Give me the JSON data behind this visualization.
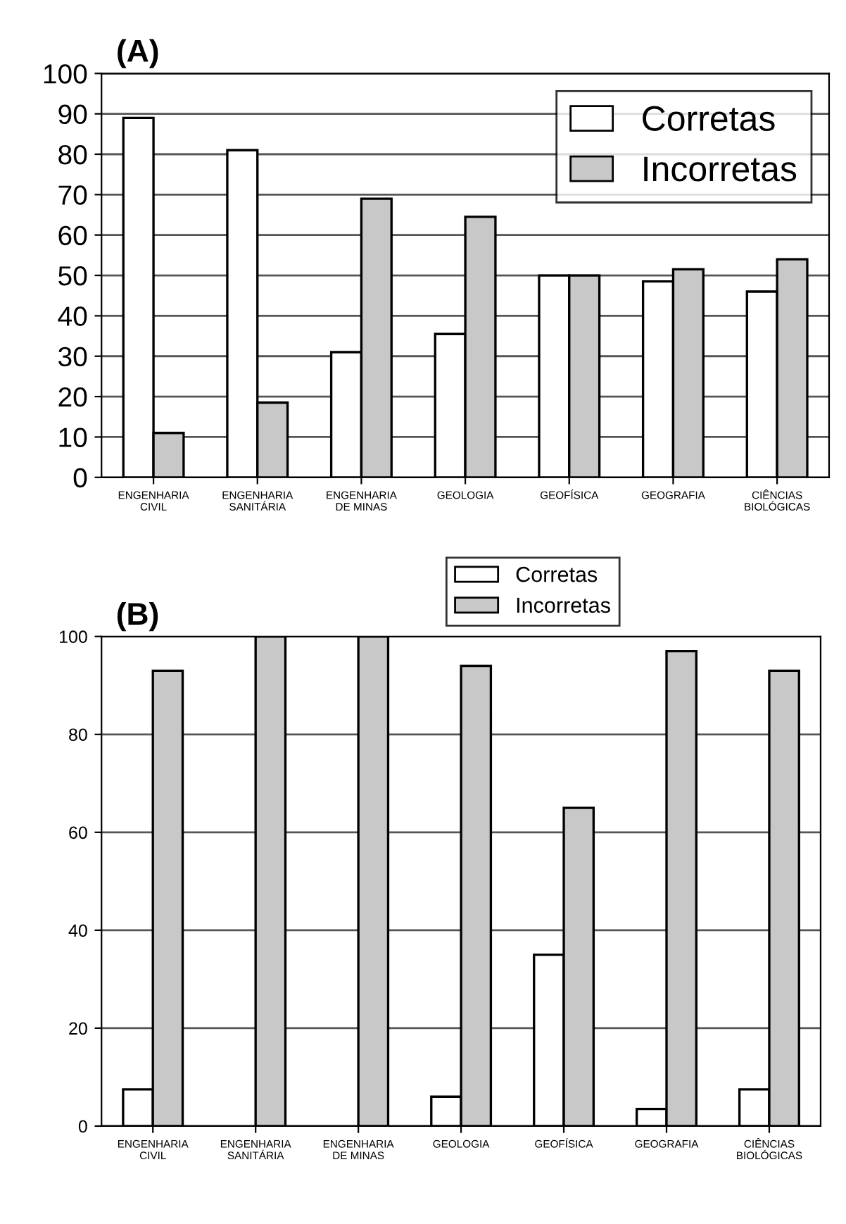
{
  "chart_data": [
    {
      "type": "bar",
      "title": "(A)",
      "categories": [
        "ENGENHARIA\nCIVIL",
        "ENGENHARIA\nSANITÁRIA",
        "ENGENHARIA\nDE MINAS",
        "GEOLOGIA",
        "GEOFÍSICA",
        "GEOGRAFIA",
        "CIÊNCIAS\nBIOLÓGICAS"
      ],
      "series": [
        {
          "name": "Corretas",
          "color": "#ffffff",
          "values": [
            89,
            81,
            31,
            35.5,
            50,
            48.5,
            46
          ]
        },
        {
          "name": "Incorretas",
          "color": "#c8c8c8",
          "values": [
            11,
            18.5,
            69,
            64.5,
            50,
            51.5,
            54
          ]
        }
      ],
      "ylim": [
        0,
        100
      ],
      "yticks": [
        0,
        10,
        20,
        30,
        40,
        50,
        60,
        70,
        80,
        90,
        100
      ],
      "grid": "y",
      "legend": "top right"
    },
    {
      "type": "bar",
      "title": "(B)",
      "categories": [
        "ENGENHARIA\nCIVIL",
        "ENGENHARIA\nSANITÁRIA",
        "ENGENHARIA\nDE MINAS",
        "GEOLOGIA",
        "GEOFÍSICA",
        "GEOGRAFIA",
        "CIÊNCIAS\nBIOLÓGICAS"
      ],
      "series": [
        {
          "name": "Corretas",
          "color": "#ffffff",
          "values": [
            7.5,
            null,
            null,
            6,
            35,
            3.5,
            7.5
          ]
        },
        {
          "name": "Incorretas",
          "color": "#c8c8c8",
          "values": [
            93,
            100,
            100,
            94,
            65,
            97,
            93
          ]
        }
      ],
      "ylim": [
        0,
        100
      ],
      "yticks": [
        0,
        20,
        40,
        60,
        80,
        100
      ],
      "grid": "y",
      "legend": "top"
    }
  ]
}
